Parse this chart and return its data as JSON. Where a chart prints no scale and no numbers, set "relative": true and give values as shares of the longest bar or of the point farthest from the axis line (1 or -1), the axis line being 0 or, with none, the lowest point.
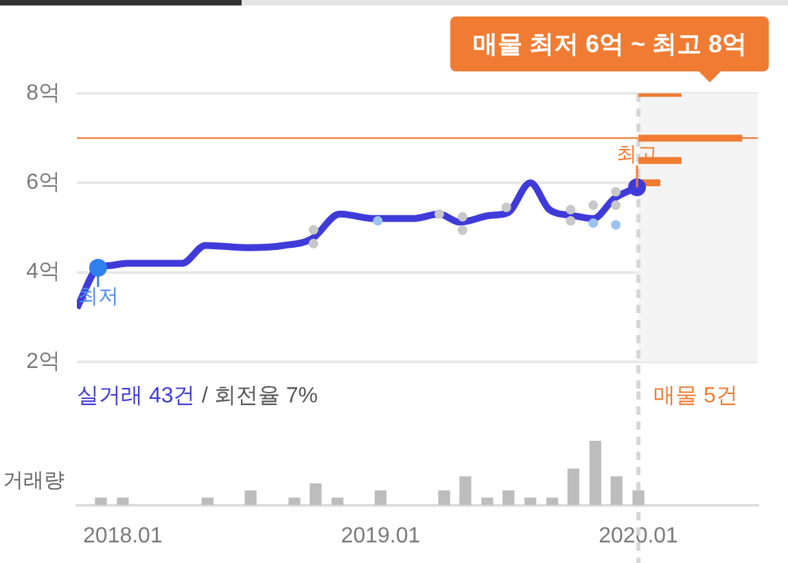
{
  "chart_data": [
    {
      "type": "line",
      "annotations": [
        "매물 최저 6억 ~ 최고 8억",
        "실거래 43건",
        "/ 회전율 7%",
        "매물 5건",
        {
          "text": "최저",
          "x": "2017-11-27",
          "y": 4.1
        },
        {
          "text": "최고",
          "x": "2019-12-30",
          "y": 5.9
        }
      ],
      "series": [
        {
          "type": "line",
          "color": "#3f3bd9",
          "x": [
            "2017-10-28",
            "2017-11-27",
            "2017-12-14",
            "2018-01-07",
            "2018-03-26",
            "2018-04-28",
            "2018-06-26",
            "2018-08-17",
            "2018-09-26",
            "2018-11-04",
            "2018-12-24",
            "2019-02-16",
            "2019-03-25",
            "2019-04-23",
            "2019-06-05",
            "2019-06-30",
            "2019-08-01",
            "2019-08-28",
            "2019-09-30",
            "2019-10-29",
            "2019-11-28",
            "2019-12-30"
          ],
          "values": [
            3.2,
            4.1,
            4.15,
            4.2,
            4.2,
            4.6,
            4.55,
            4.6,
            4.75,
            5.3,
            5.2,
            5.2,
            5.3,
            5.12,
            5.27,
            5.33,
            6.0,
            5.4,
            5.27,
            5.2,
            5.65,
            5.9
          ]
        },
        {
          "type": "scatter",
          "color": "#c8c8c8",
          "x": [
            "2018-09-28",
            "2018-09-28",
            "2019-03-25",
            "2019-04-27",
            "2019-04-27",
            "2019-06-28",
            "2019-09-27",
            "2019-09-27",
            "2019-10-29",
            "2019-11-30",
            "2019-11-30"
          ],
          "values": [
            4.95,
            4.64,
            5.3,
            5.24,
            4.94,
            5.45,
            5.4,
            5.15,
            5.5,
            5.8,
            5.5
          ]
        },
        {
          "type": "scatter",
          "color": "#9cc3f0",
          "x": [
            "2018-12-28",
            "2019-10-29",
            "2019-11-30"
          ],
          "values": [
            5.15,
            5.1,
            5.06
          ]
        },
        {
          "type": "scatter",
          "colors": [
            "#2f80ed",
            "#3f3bd9"
          ],
          "x": [
            "2017-11-27",
            "2019-12-30"
          ],
          "values": [
            4.1,
            5.9
          ]
        },
        {
          "type": "line",
          "color": "#f07c33",
          "x": [
            "2020-01-01",
            "2020-03-02"
          ],
          "values": [
            8,
            8
          ]
        },
        {
          "type": "line",
          "color": "#f07c33",
          "x": [
            "2020-01-01",
            "2020-05-27"
          ],
          "values": [
            7,
            7
          ]
        },
        {
          "type": "line",
          "color": "#f07c33",
          "x": [
            "2020-01-01",
            "2020-03-02"
          ],
          "values": [
            6.5,
            6.5
          ]
        },
        {
          "type": "line",
          "color": "#f07c33",
          "x": [
            "2020-01-01",
            "2020-02-01"
          ],
          "values": [
            6,
            6
          ]
        }
      ],
      "xlim": [
        "2017-10-28",
        "2020-06-18"
      ],
      "ylim": [
        2,
        8
      ],
      "yticks": [
        {
          "value": 2,
          "label": "2억"
        },
        {
          "value": 4,
          "label": "4억"
        },
        {
          "value": 6,
          "label": "6억"
        },
        {
          "value": 8,
          "label": "8억"
        }
      ],
      "ref_lines": [
        {
          "axis": "y",
          "value": 7,
          "color": "#f07c33"
        },
        {
          "axis": "x",
          "value": "2020-01-01",
          "color": "#d6d6d6",
          "line_style": "dashed"
        }
      ],
      "bands": [
        {
          "axis": "x",
          "from": "2020-01-01",
          "to": "2020-06-18",
          "color": "#f4f4f4"
        }
      ],
      "grid": "y",
      "tick_labels": "y"
    },
    {
      "type": "bar",
      "ylabel": "거래량",
      "color": "#bdbdbd",
      "relative": true,
      "x": [
        "2017-12-01",
        "2018-01-01",
        "2018-05-01",
        "2018-07-01",
        "2018-09-01",
        "2018-10-01",
        "2018-11-01",
        "2019-01-01",
        "2019-04-01",
        "2019-05-01",
        "2019-06-01",
        "2019-07-01",
        "2019-08-01",
        "2019-09-01",
        "2019-10-01",
        "2019-11-01",
        "2019-12-01",
        "2020-01-01"
      ],
      "values": [
        0.11,
        0.11,
        0.11,
        0.22,
        0.11,
        0.33,
        0.11,
        0.22,
        0.22,
        0.44,
        0.11,
        0.22,
        0.11,
        0.11,
        0.56,
        1,
        0.44,
        0.22
      ],
      "xlim": [
        "2017-10-28",
        "2020-06-18"
      ],
      "xticks": [
        {
          "value": "2018-01-01",
          "label": "2018.01"
        },
        {
          "value": "2019-01-01",
          "label": "2019.01"
        },
        {
          "value": "2020-01-01",
          "label": "2020.01"
        }
      ],
      "ref_lines": [
        {
          "axis": "x",
          "value": "2020-01-01",
          "color": "#d6d6d6",
          "line_style": "dashed"
        }
      ],
      "grid": false,
      "tick_labels": "x"
    }
  ]
}
